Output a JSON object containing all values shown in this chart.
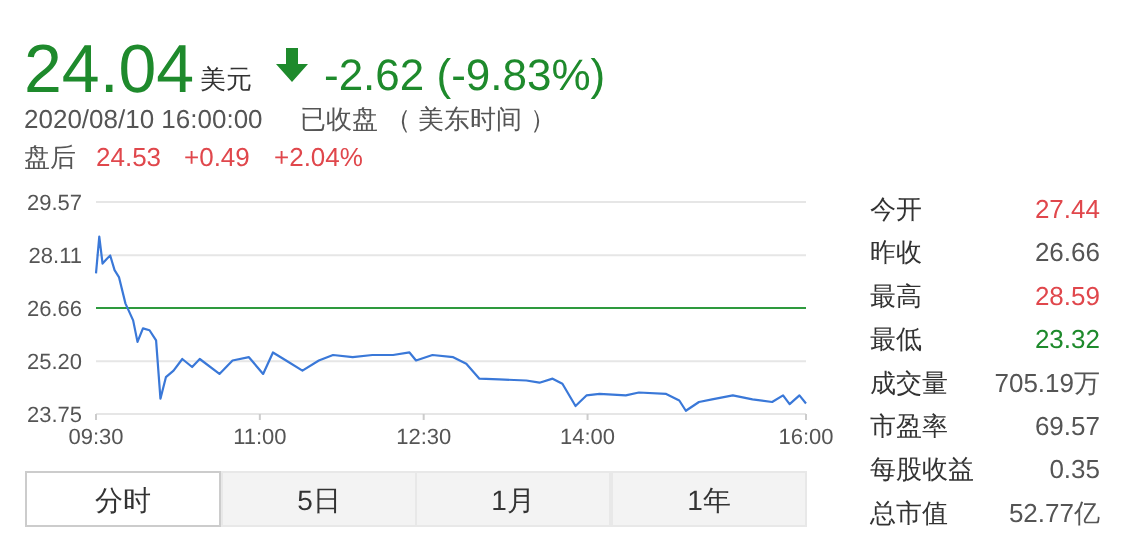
{
  "chart_data": {
    "type": "line",
    "title": "24.04",
    "annotations": [
      "美元",
      "-2.62 (-9.83%)",
      "2020/08/10 16:00:00",
      "已收盘 （ 美东时间 ）",
      "盘后",
      "24.53",
      "+0.49",
      "+2.04%",
      "今开",
      "27.44",
      "昨收",
      "26.66",
      "最高",
      "28.59",
      "最低",
      "23.32",
      "成交量",
      "705.19万",
      "市盈率",
      "69.57",
      "每股收益",
      "0.35",
      "总市值",
      "52.77亿",
      "分时",
      "5日",
      "1月",
      "1年"
    ],
    "x": [
      9.5,
      9.53,
      9.56,
      9.6,
      9.63,
      9.67,
      9.71,
      9.77,
      9.84,
      9.88,
      9.93,
      9.99,
      10.05,
      10.09,
      10.14,
      10.21,
      10.29,
      10.38,
      10.45,
      10.63,
      10.75,
      10.9,
      11.03,
      11.12,
      11.24,
      11.39,
      11.54,
      11.67,
      11.85,
      12.03,
      12.22,
      12.37,
      12.43,
      12.58,
      12.77,
      12.89,
      13.01,
      13.19,
      13.44,
      13.56,
      13.68,
      13.77,
      13.89,
      13.99,
      14.11,
      14.35,
      14.47,
      14.72,
      14.84,
      14.9,
      15.02,
      15.14,
      15.33,
      15.51,
      15.69,
      15.79,
      15.85,
      15.94,
      16.0
    ],
    "series": [
      {
        "color": "#3a78d8",
        "values": [
          27.61,
          28.62,
          27.88,
          28.01,
          28.1,
          27.7,
          27.51,
          26.78,
          26.32,
          25.73,
          26.1,
          26.05,
          25.77,
          24.17,
          24.76,
          24.94,
          25.26,
          25.04,
          25.26,
          24.85,
          25.22,
          25.31,
          24.85,
          25.44,
          25.22,
          24.94,
          25.22,
          25.37,
          25.31,
          25.37,
          25.37,
          25.44,
          25.22,
          25.37,
          25.31,
          25.13,
          24.72,
          24.7,
          24.67,
          24.61,
          24.72,
          24.58,
          23.97,
          24.26,
          24.3,
          24.26,
          24.34,
          24.3,
          24.12,
          23.84,
          24.08,
          24.15,
          24.26,
          24.15,
          24.08,
          24.26,
          24.02,
          24.26,
          24.04
        ]
      }
    ],
    "xlim": [
      9.5,
      16
    ],
    "xticks": [
      {
        "value": 9.5,
        "label": "09:30"
      },
      {
        "value": 11,
        "label": "11:00"
      },
      {
        "value": 12.5,
        "label": "12:30"
      },
      {
        "value": 14,
        "label": "14:00"
      },
      {
        "value": 16,
        "label": "16:00"
      }
    ],
    "ylim": [
      23.75,
      29.57
    ],
    "yticks": [
      {
        "value": 23.75,
        "label": "23.75"
      },
      {
        "value": 25.2,
        "label": "25.20"
      },
      {
        "value": 26.66,
        "label": "26.66"
      },
      {
        "value": 28.11,
        "label": "28.11"
      },
      {
        "value": 29.57,
        "label": "29.57"
      }
    ],
    "ref_lines": [
      {
        "axis": "y",
        "value": 26.66,
        "color": "#2e9a3e"
      }
    ],
    "grid": "y",
    "marker": "none",
    "line_style": "solid"
  }
}
